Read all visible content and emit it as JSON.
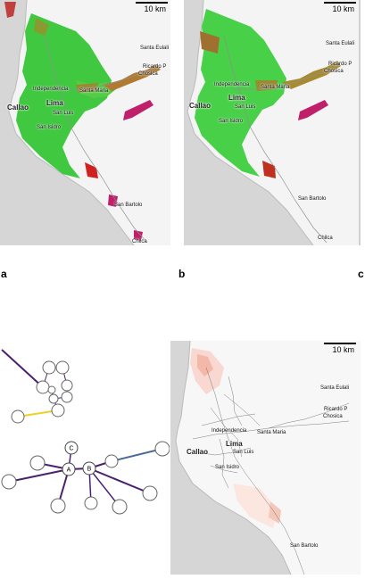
{
  "panels": {
    "a": {
      "letter": "a",
      "scale": "10 km"
    },
    "b": {
      "letter": "b",
      "scale": "10 km"
    },
    "c": {
      "letter": "c"
    },
    "d": {
      "scale": "10 km"
    }
  },
  "places_top": {
    "callao": "Callao",
    "lima": "Lima",
    "independencia": "Independencia",
    "santa_maria": "Santa Maria",
    "san_luis": "San Luis",
    "san_isidro": "San Isidro",
    "santa_eulalia": "Santa Eulali",
    "ricardo_palma": "Ricardo P",
    "chosica": "Chosica",
    "san_bartolo": "San Bartolo",
    "chilca": "Chilca"
  },
  "places_d": {
    "callao": "Callao",
    "lima": "Lima",
    "independencia": "Independencia",
    "santa_maria": "Santa Maria",
    "san_luis": "San Luis",
    "san_isidro": "San Isidro",
    "santa_eulalia": "Santa Eulali",
    "ricardo_palma": "Ricardo P",
    "chosica": "Chosica",
    "san_bartolo": "San Bartolo"
  },
  "graph": {
    "node_labels": [
      "C",
      "A",
      "B"
    ],
    "edge_colors": {
      "purple": "#4a2070",
      "yellow": "#f0d020",
      "blue": "#4a6a9a"
    }
  },
  "colors": {
    "sea": "#d6d6d6",
    "land": "#f4f4f4",
    "green": "#40c840",
    "red": "#d02020",
    "magenta": "#c0206a"
  }
}
